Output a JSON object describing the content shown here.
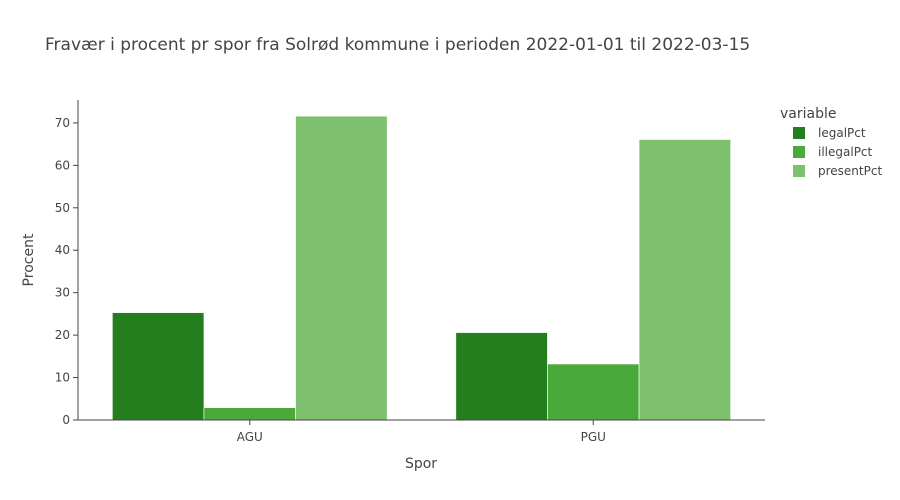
{
  "chart_data": {
    "type": "bar",
    "title": "Fravær i procent pr spor fra Solrød kommune i perioden 2022-01-01 til 2022-03-15",
    "xlabel": "Spor",
    "ylabel": "Procent",
    "categories": [
      "AGU",
      "PGU"
    ],
    "series": [
      {
        "name": "legalPct",
        "values": [
          25.3,
          20.6
        ],
        "color": "#247e1d"
      },
      {
        "name": "illegalPct",
        "values": [
          2.9,
          13.2
        ],
        "color": "#49aa3a"
      },
      {
        "name": "presentPct",
        "values": [
          71.6,
          66.1
        ],
        "color": "#7dc16f"
      }
    ],
    "ylim": [
      0,
      75.4
    ],
    "yticks": [
      0,
      10,
      20,
      30,
      40,
      50,
      60,
      70
    ],
    "grid": false,
    "legend": {
      "title": "variable",
      "placement": "right"
    }
  }
}
